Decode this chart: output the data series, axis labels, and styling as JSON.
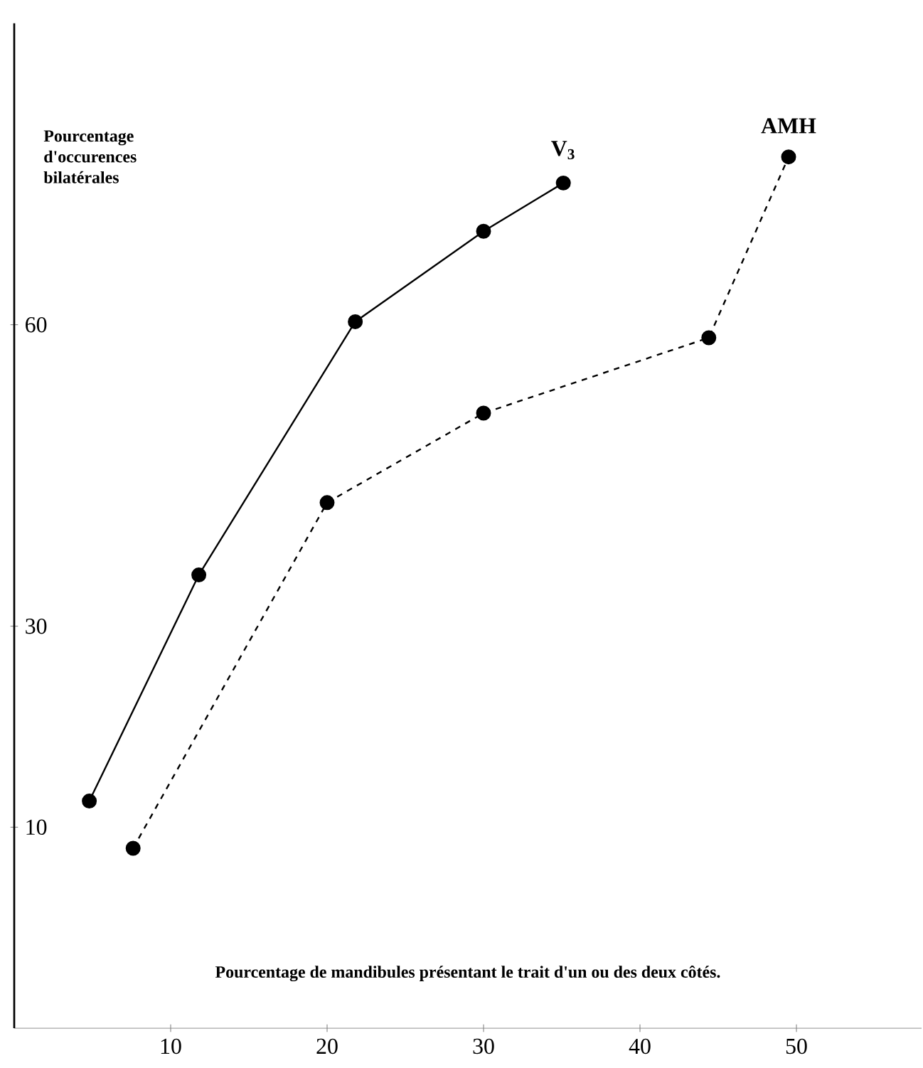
{
  "chart_data": {
    "type": "line",
    "ylabel": "Pourcentage d'occurences bilatérales",
    "xlabel": "Pourcentage de mandibules présentant le trait d'un ou des deux côtés.",
    "xlim": [
      0,
      58
    ],
    "ylim": [
      -10,
      90
    ],
    "xticks": [
      10,
      20,
      30,
      40,
      50
    ],
    "yticks": [
      10,
      30,
      60
    ],
    "series": [
      {
        "name": "V$_{3}$",
        "color": "#000000",
        "line_style": "solid",
        "x": [
          4.8,
          11.8,
          21.8,
          30,
          35.1
        ],
        "values": [
          12.6,
          35.1,
          60.3,
          69.3,
          74.1
        ]
      },
      {
        "name": "AMH",
        "color": "#000000",
        "line_style": "dashed",
        "x": [
          7.6,
          20,
          30,
          44.4,
          49.5
        ],
        "values": [
          7.9,
          42.3,
          51.2,
          58.7,
          76.7
        ]
      }
    ],
    "marker": "circle",
    "grid": false
  }
}
